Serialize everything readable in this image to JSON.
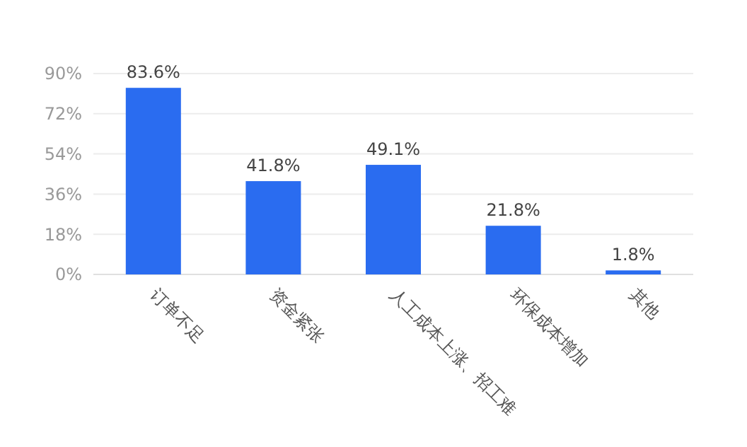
{
  "chart_data": {
    "type": "bar",
    "categories": [
      "订单不足",
      "资金紧张",
      "人工成本上涨、招工难",
      "环保成本增加",
      "其他"
    ],
    "values": [
      83.6,
      41.8,
      49.1,
      21.8,
      1.8
    ],
    "value_labels": [
      "83.6%",
      "41.8%",
      "49.1%",
      "21.8%",
      "1.8%"
    ],
    "color": "#2a6cf0",
    "ylim": [
      0,
      90
    ],
    "yticks": [
      {
        "value": 0,
        "label": "0%"
      },
      {
        "value": 18,
        "label": "18%"
      },
      {
        "value": 36,
        "label": "36%"
      },
      {
        "value": 54,
        "label": "54%"
      },
      {
        "value": 72,
        "label": "72%"
      },
      {
        "value": 90,
        "label": "90%"
      }
    ],
    "grid": "y"
  }
}
